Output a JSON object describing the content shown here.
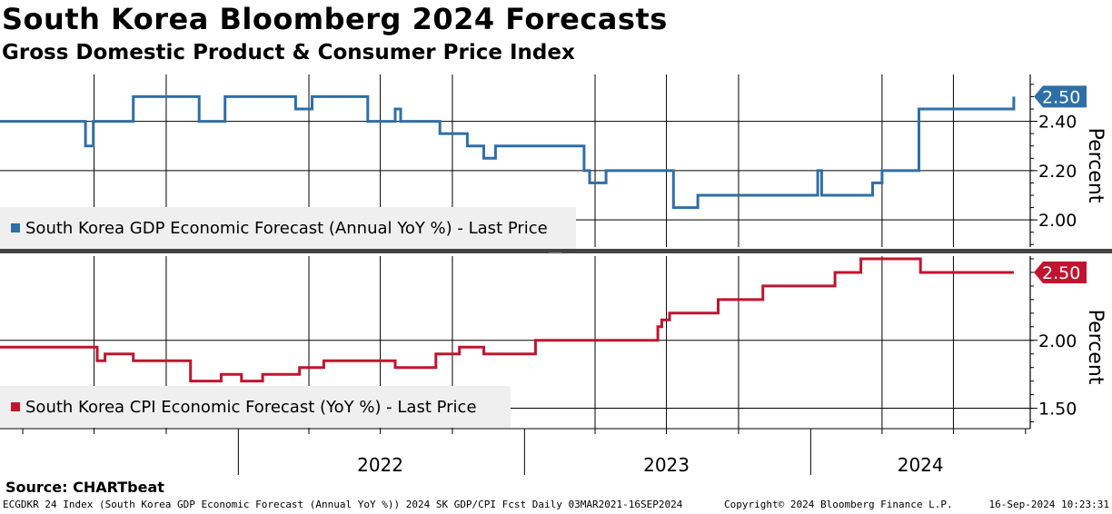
{
  "header": {
    "title": "South Korea Bloomberg 2024 Forecasts",
    "subtitle": "Gross Domestic Product & Consumer Price Index"
  },
  "footer": {
    "source": "Source: CHARTbeat",
    "description": "ECGDKR 24 Index (South Korea GDP Economic Forecast (Annual YoY %)) 2024 SK GDP/CPI Fcst  Daily 03MAR2021-16SEP2024",
    "copyright": "Copyright© 2024 Bloomberg Finance L.P.",
    "timestamp": "16-Sep-2024 10:23:31"
  },
  "colors": {
    "gdp": "#2e6fa7",
    "cpi": "#c0152f"
  },
  "chart_data": [
    {
      "type": "line",
      "panel": "top",
      "legend": "South Korea GDP Economic Forecast (Annual YoY %) - Last Price",
      "ylabel": "Percent",
      "ylim": [
        1.89,
        2.59
      ],
      "yticks": [
        "2.00",
        "2.20",
        "2.40"
      ],
      "last_value": "2.50",
      "x_categories": [
        "2022",
        "2023",
        "2024"
      ],
      "series": [
        {
          "x": [
            "2021-03-03",
            "2021-05-20",
            "2021-06-20",
            "2021-06-30",
            "2021-07-25",
            "2021-08-20",
            "2021-09-05",
            "2021-11-05",
            "2021-11-12",
            "2021-11-18",
            "2021-12-15",
            "2022-01-10",
            "2022-03-15",
            "2022-04-05",
            "2022-05-20",
            "2022-06-15",
            "2022-07-20",
            "2022-07-27",
            "2022-08-25",
            "2022-09-15",
            "2022-10-20",
            "2022-11-10",
            "2022-11-25",
            "2023-01-10",
            "2023-03-18",
            "2023-03-25",
            "2023-04-15",
            "2023-06-25",
            "2023-07-10",
            "2023-08-05",
            "2023-08-10",
            "2023-08-28",
            "2023-09-15",
            "2023-11-25",
            "2024-01-10",
            "2024-01-15",
            "2024-02-05",
            "2024-03-20",
            "2024-04-01",
            "2024-05-18",
            "2024-09-16"
          ],
          "y": [
            2.4,
            2.4,
            2.3,
            2.4,
            2.4,
            2.5,
            2.5,
            2.5,
            2.4,
            2.4,
            2.5,
            2.5,
            2.45,
            2.5,
            2.5,
            2.4,
            2.45,
            2.4,
            2.4,
            2.35,
            2.3,
            2.25,
            2.3,
            2.3,
            2.2,
            2.15,
            2.2,
            2.2,
            2.05,
            2.05,
            2.1,
            2.1,
            2.1,
            2.1,
            2.2,
            2.1,
            2.1,
            2.15,
            2.2,
            2.45,
            2.5
          ]
        }
      ]
    },
    {
      "type": "line",
      "panel": "bottom",
      "legend": "South Korea CPI Economic Forecast (YoY %) - Last Price",
      "ylabel": "Percent",
      "ylim": [
        1.35,
        2.62
      ],
      "yticks": [
        "1.50",
        "2.00"
      ],
      "last_value": "2.50",
      "x_categories": [
        "2022",
        "2023",
        "2024"
      ],
      "series": [
        {
          "x": [
            "2021-03-03",
            "2021-06-10",
            "2021-07-05",
            "2021-07-15",
            "2021-08-20",
            "2021-09-30",
            "2021-11-01",
            "2021-12-01",
            "2021-12-10",
            "2022-01-05",
            "2022-02-01",
            "2022-03-20",
            "2022-04-20",
            "2022-07-20",
            "2022-09-10",
            "2022-10-01",
            "2022-10-10",
            "2022-11-10",
            "2022-12-05",
            "2023-01-15",
            "2023-03-10",
            "2023-04-15",
            "2023-06-20",
            "2023-06-25",
            "2023-07-05",
            "2023-09-05",
            "2023-09-10",
            "2023-11-01",
            "2023-11-15",
            "2024-01-05",
            "2024-02-01",
            "2024-03-05",
            "2024-04-05",
            "2024-05-20",
            "2024-09-16"
          ],
          "y": [
            1.95,
            1.95,
            1.85,
            1.9,
            1.85,
            1.85,
            1.7,
            1.7,
            1.75,
            1.7,
            1.75,
            1.8,
            1.85,
            1.8,
            1.9,
            1.9,
            1.95,
            1.9,
            1.9,
            2.0,
            2.0,
            2.0,
            2.1,
            2.15,
            2.2,
            2.3,
            2.3,
            2.4,
            2.4,
            2.4,
            2.5,
            2.6,
            2.6,
            2.5,
            2.5
          ]
        }
      ]
    }
  ]
}
